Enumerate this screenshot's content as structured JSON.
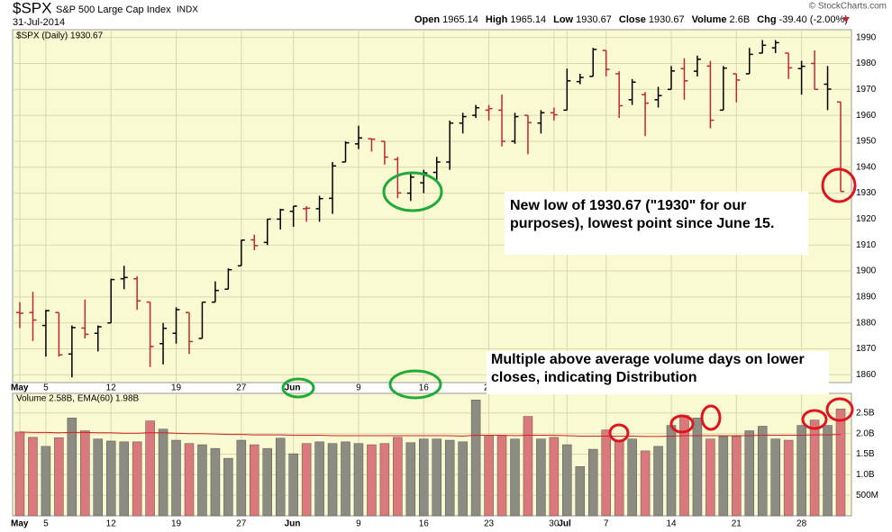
{
  "chart_data": {
    "type": "ohlc",
    "symbol": "$SPX",
    "name": "S&P 500 Large Cap Index",
    "exchange": "INDX",
    "date": "31-Jul-2014",
    "quote": [
      [
        "Open",
        "1965.14"
      ],
      [
        "High",
        "1965.14"
      ],
      [
        "Low",
        "1930.67"
      ],
      [
        "Close",
        "1930.67"
      ],
      [
        "Volume",
        "2.6B"
      ],
      [
        "Chg",
        "-39.40 (-2.00%)"
      ]
    ],
    "credit": "© StockCharts.com",
    "price_label": "$SPX (Daily) 1930.67",
    "volume_label": "Volume 2.58B, EMA(60) 1.98B",
    "categories": [
      "May",
      null,
      "5",
      null,
      null,
      null,
      null,
      "12",
      null,
      null,
      null,
      null,
      "19",
      null,
      null,
      null,
      null,
      "27",
      null,
      null,
      null,
      "Jun",
      null,
      null,
      null,
      null,
      "9",
      null,
      null,
      null,
      null,
      "16",
      null,
      null,
      null,
      null,
      "23",
      null,
      null,
      null,
      null,
      "30",
      "Jul",
      null,
      null,
      "7",
      null,
      null,
      null,
      null,
      "14",
      null,
      null,
      null,
      null,
      "21",
      null,
      null,
      null,
      null,
      "28",
      null,
      null,
      null
    ],
    "open": [
      1884,
      1884,
      1879,
      1884,
      1868,
      1878,
      1876,
      1880,
      1897,
      1897,
      1888,
      1872,
      1876,
      1884,
      1874,
      1888,
      1893,
      1902,
      1912,
      1911,
      1920,
      1923,
      1924,
      1924,
      1928,
      1942,
      1949,
      1951,
      1950,
      1943,
      1930,
      1934,
      1938,
      1942,
      1957,
      1960,
      1962,
      1962,
      1950,
      1960,
      1957,
      1961,
      1962,
      1973,
      1975,
      1985,
      1976,
      1966,
      1968,
      1966,
      1970,
      1978,
      1977,
      1979,
      1962,
      1976,
      1976,
      1984,
      1986,
      1984,
      1978,
      1980,
      1972,
      1965.14
    ],
    "high": [
      1888,
      1892,
      1885,
      1884,
      1879,
      1889,
      1879,
      1897,
      1902,
      1898,
      1888,
      1880,
      1886,
      1884,
      1888,
      1896,
      1901,
      1912,
      1914,
      1920,
      1924,
      1925,
      1925,
      1929,
      1942,
      1950,
      1956,
      1951,
      1950,
      1944,
      1938,
      1939,
      1944,
      1958,
      1961,
      1964,
      1964,
      1968,
      1961,
      1960,
      1962,
      1963,
      1978,
      1976,
      1986,
      1985,
      1977,
      1974,
      1969,
      1971,
      1979,
      1982,
      1983,
      1981,
      1979,
      1976,
      1986,
      1989,
      1989,
      1984,
      1981,
      1985,
      1979,
      1965.14
    ],
    "low": [
      1878,
      1873,
      1867,
      1867,
      1859,
      1874,
      1869,
      1880,
      1893,
      1885,
      1863,
      1864,
      1872,
      1868,
      1874,
      1888,
      1893,
      1902,
      1908,
      1910,
      1916,
      1917,
      1919,
      1919,
      1922,
      1942,
      1947,
      1946,
      1941,
      1928,
      1927,
      1930,
      1935,
      1939,
      1953,
      1959,
      1958,
      1948,
      1949,
      1945,
      1953,
      1958,
      1962,
      1972,
      1975,
      1975,
      1959,
      1964,
      1952,
      1963,
      1970,
      1966,
      1975,
      1955,
      1962,
      1965,
      1976,
      1984,
      1984,
      1974,
      1968,
      1970,
      1962,
      1930.67
    ],
    "close": [
      1883.7,
      1881.1,
      1884.7,
      1867.7,
      1878.2,
      1875.6,
      1878.5,
      1896.7,
      1897.5,
      1888.5,
      1870.9,
      1877.9,
      1885.1,
      1872.8,
      1888.0,
      1892.5,
      1900.5,
      1911.9,
      1909.8,
      1920.0,
      1923.6,
      1925.0,
      1924.2,
      1927.9,
      1940.5,
      1949.4,
      1951.3,
      1950.8,
      1943.9,
      1930.1,
      1936.2,
      1937.8,
      1942.0,
      1957.0,
      1959.5,
      1962.9,
      1962.6,
      1950.0,
      1959.5,
      1957.2,
      1961.0,
      1960.2,
      1973.3,
      1974.6,
      1985.4,
      1977.7,
      1963.7,
      1972.8,
      1964.7,
      1967.6,
      1977.1,
      1973.3,
      1981.6,
      1958.1,
      1978.2,
      1973.6,
      1983.5,
      1987.0,
      1988.0,
      1978.3,
      1978.9,
      1970.0,
      1970.1,
      1930.67
    ],
    "volume": [
      2.04,
      1.91,
      1.69,
      1.9,
      2.38,
      2.07,
      1.87,
      1.82,
      1.8,
      1.8,
      2.31,
      2.11,
      1.84,
      1.76,
      1.73,
      1.64,
      1.4,
      1.84,
      1.73,
      1.64,
      1.89,
      1.51,
      1.76,
      1.8,
      1.76,
      1.8,
      1.76,
      1.73,
      1.76,
      1.91,
      1.78,
      1.87,
      1.87,
      1.84,
      1.8,
      2.82,
      1.96,
      1.96,
      1.87,
      2.42,
      1.87,
      1.91,
      1.73,
      1.2,
      1.62,
      2.09,
      1.82,
      1.87,
      1.58,
      1.69,
      2.2,
      2.44,
      2.38,
      1.87,
      1.93,
      1.93,
      2.07,
      2.18,
      1.87,
      1.84,
      2.2,
      2.33,
      2.2,
      2.6
    ],
    "ema": [
      2.04,
      2.03,
      2.03,
      2.02,
      2.03,
      2.03,
      2.02,
      2.02,
      2.01,
      2.01,
      2.02,
      2.02,
      2.01,
      2.0,
      2.0,
      1.99,
      1.98,
      1.98,
      1.97,
      1.97,
      1.97,
      1.96,
      1.96,
      1.96,
      1.95,
      1.95,
      1.95,
      1.95,
      1.95,
      1.95,
      1.95,
      1.95,
      1.95,
      1.95,
      1.94,
      1.96,
      1.96,
      1.96,
      1.95,
      1.96,
      1.96,
      1.96,
      1.95,
      1.94,
      1.94,
      1.94,
      1.94,
      1.94,
      1.93,
      1.93,
      1.94,
      1.95,
      1.95,
      1.95,
      1.95,
      1.95,
      1.95,
      1.96,
      1.96,
      1.96,
      1.96,
      1.97,
      1.97,
      1.98
    ],
    "up_color": "#000000",
    "down_color": "#c0282f",
    "vol_up_color": "#8c8c82",
    "vol_down_color": "#d9797b",
    "ema_color": "#d02020",
    "ylim": [
      1857,
      1993
    ],
    "yticks": [
      1860,
      1870,
      1880,
      1890,
      1900,
      1910,
      1920,
      1930,
      1940,
      1950,
      1960,
      1970,
      1980,
      1990
    ],
    "y2lim": [
      0,
      2.98
    ],
    "y2ticks": [
      {
        "value": 0.5,
        "label": "500M"
      },
      {
        "value": 1.0,
        "label": "1.0B"
      },
      {
        "value": 1.5,
        "label": "1.5B"
      },
      {
        "value": 2.0,
        "label": "2.0B"
      },
      {
        "value": 2.5,
        "label": "2.5B"
      }
    ],
    "grid": true,
    "annotations": [
      {
        "lines": [
          "New low of 1930.67 (\"1930\" for our",
          "purposes), lowest point since June 15."
        ]
      },
      {
        "lines": [
          "Multiple above average volume days on lower",
          "closes, indicating Distribution"
        ]
      }
    ]
  }
}
